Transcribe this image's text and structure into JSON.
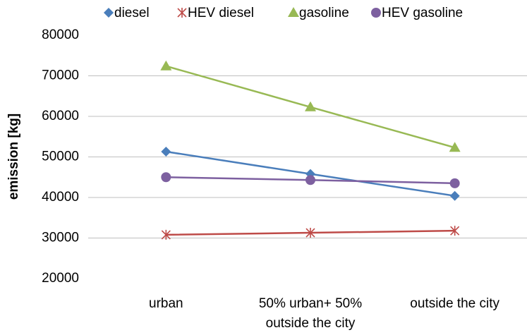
{
  "chart_data": {
    "type": "line",
    "y_label": "emission [kg]",
    "categories": [
      "urban",
      "50% urban+ 50% outside the city",
      "outside the city"
    ],
    "series": [
      {
        "name": "diesel",
        "color": "#4a7ebb",
        "marker": "diamond",
        "values": [
          51300,
          45800,
          40400
        ]
      },
      {
        "name": "HEV diesel",
        "color": "#be4b48",
        "marker": "star",
        "values": [
          30800,
          31300,
          31800
        ]
      },
      {
        "name": "gasoline",
        "color": "#98b954",
        "marker": "triangle",
        "values": [
          72400,
          62300,
          52300
        ]
      },
      {
        "name": "HEV gasoline",
        "color": "#7d60a0",
        "marker": "circle",
        "values": [
          45000,
          44300,
          43500
        ]
      }
    ],
    "ylim": [
      20000,
      80000
    ],
    "yticks": [
      20000,
      30000,
      40000,
      50000,
      60000,
      70000,
      80000
    ],
    "grid": true,
    "legend": "top"
  }
}
